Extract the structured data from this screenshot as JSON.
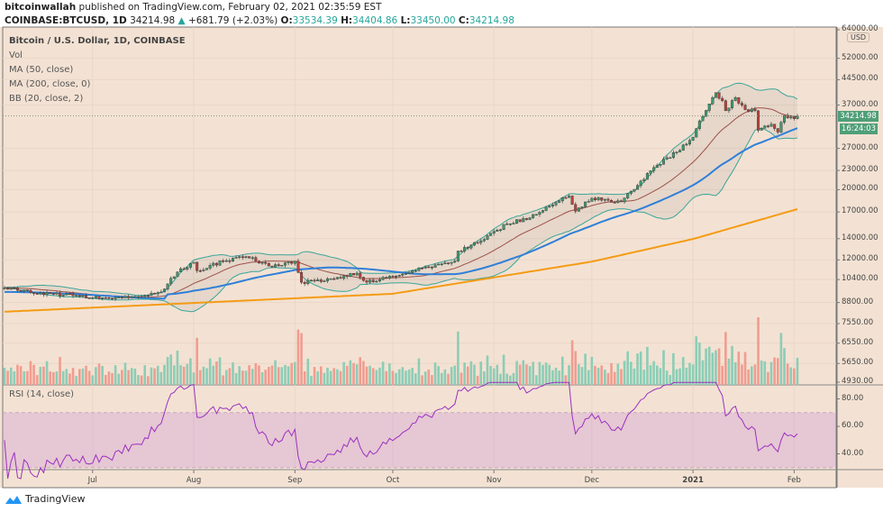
{
  "header": {
    "publisher": "bitcoinwallah",
    "published_text": "published on TradingView.com, February 02, 2021 02:35:59 EST",
    "symbol": "COINBASE:BTCUSD, 1D",
    "last": "34214.98",
    "change": "+681.79 (+2.03%)",
    "o_label": "O:",
    "open": "33534.39",
    "h_label": "H:",
    "high": "34404.86",
    "l_label": "L:",
    "low": "33450.00",
    "c_label": "C:",
    "close": "34214.98"
  },
  "legend": {
    "title": "Bitcoin / U.S. Dollar, 1D, COINBASE",
    "vol": "Vol",
    "ma50": "MA (50, close)",
    "ma200": "MA (200, close, 0)",
    "bb": "BB (20, close, 2)"
  },
  "rsi": {
    "label": "RSI (14, close)",
    "ticks": [
      "80.00",
      "60.00",
      "40.00"
    ],
    "upper": 70,
    "lower": 30
  },
  "price_axis": {
    "currency": "USD",
    "ticks": [
      "64000.00",
      "52000.00",
      "44500.00",
      "37000.00",
      "27000.00",
      "23000.00",
      "20000.00",
      "17000.00",
      "14000.00",
      "12000.00",
      "10400.00",
      "8800.00",
      "7550.00",
      "6550.00",
      "5650.00",
      "4930.00"
    ],
    "last_price_tag": "34214.98",
    "countdown_tag": "16:24:03",
    "scale": "log"
  },
  "time_axis": {
    "ticks": [
      {
        "label": "Jul",
        "date": "2020-07-01"
      },
      {
        "label": "Aug",
        "date": "2020-08-01"
      },
      {
        "label": "Sep",
        "date": "2020-09-01"
      },
      {
        "label": "Oct",
        "date": "2020-10-01"
      },
      {
        "label": "Nov",
        "date": "2020-11-01"
      },
      {
        "label": "Dec",
        "date": "2020-12-01"
      },
      {
        "label": "2021",
        "date": "2021-01-01"
      },
      {
        "label": "Feb",
        "date": "2021-02-01"
      }
    ]
  },
  "colors": {
    "background": "#f3e2d3",
    "up": "#3f9a6e",
    "down": "#b8433a",
    "vol_up": "#8ccdb6",
    "vol_down": "#f19c90",
    "ma50": "#2f7fd8",
    "ma200": "#f59b14",
    "bb_basis": "#9e5048",
    "bb_band": "#3aa59a",
    "rsi": "#9b30c0"
  },
  "chart_data": {
    "type": "candlestick",
    "start_date": "2020-06-04",
    "end_date": "2021-02-02",
    "y_scale": "log",
    "ylim": [
      4930,
      64000
    ],
    "close_keypoints": [
      [
        "2020-06-04",
        9800
      ],
      [
        "2020-06-15",
        9450
      ],
      [
        "2020-06-25",
        9250
      ],
      [
        "2020-07-01",
        9100
      ],
      [
        "2020-07-15",
        9200
      ],
      [
        "2020-07-22",
        9500
      ],
      [
        "2020-07-27",
        11000
      ],
      [
        "2020-08-01",
        11800
      ],
      [
        "2020-08-02",
        11100
      ],
      [
        "2020-08-10",
        11900
      ],
      [
        "2020-08-17",
        12300
      ],
      [
        "2020-08-25",
        11400
      ],
      [
        "2020-09-01",
        11900
      ],
      [
        "2020-09-03",
        10200
      ],
      [
        "2020-09-10",
        10300
      ],
      [
        "2020-09-20",
        10900
      ],
      [
        "2020-09-23",
        10200
      ],
      [
        "2020-10-01",
        10600
      ],
      [
        "2020-10-10",
        11300
      ],
      [
        "2020-10-20",
        11900
      ],
      [
        "2020-10-21",
        12800
      ],
      [
        "2020-10-27",
        13600
      ],
      [
        "2020-11-05",
        15600
      ],
      [
        "2020-11-12",
        16300
      ],
      [
        "2020-11-17",
        17600
      ],
      [
        "2020-11-24",
        19100
      ],
      [
        "2020-11-26",
        17100
      ],
      [
        "2020-12-01",
        18800
      ],
      [
        "2020-12-10",
        18300
      ],
      [
        "2020-12-16",
        21300
      ],
      [
        "2020-12-20",
        23500
      ],
      [
        "2020-12-27",
        26300
      ],
      [
        "2021-01-01",
        29300
      ],
      [
        "2021-01-03",
        33000
      ],
      [
        "2021-01-08",
        40500
      ],
      [
        "2021-01-10",
        38200
      ],
      [
        "2021-01-11",
        35500
      ],
      [
        "2021-01-14",
        39100
      ],
      [
        "2021-01-17",
        35800
      ],
      [
        "2021-01-20",
        35500
      ],
      [
        "2021-01-21",
        30800
      ],
      [
        "2021-01-25",
        32200
      ],
      [
        "2021-01-27",
        30400
      ],
      [
        "2021-01-29",
        34300
      ],
      [
        "2021-02-01",
        33500
      ],
      [
        "2021-02-02",
        34214.98
      ]
    ],
    "ma200_keypoints": [
      [
        "2020-06-04",
        8230
      ],
      [
        "2020-10-01",
        9380
      ],
      [
        "2020-12-01",
        11850
      ],
      [
        "2021-01-01",
        13970
      ],
      [
        "2021-02-02",
        17360
      ]
    ]
  },
  "brand": {
    "name": "TradingView"
  }
}
